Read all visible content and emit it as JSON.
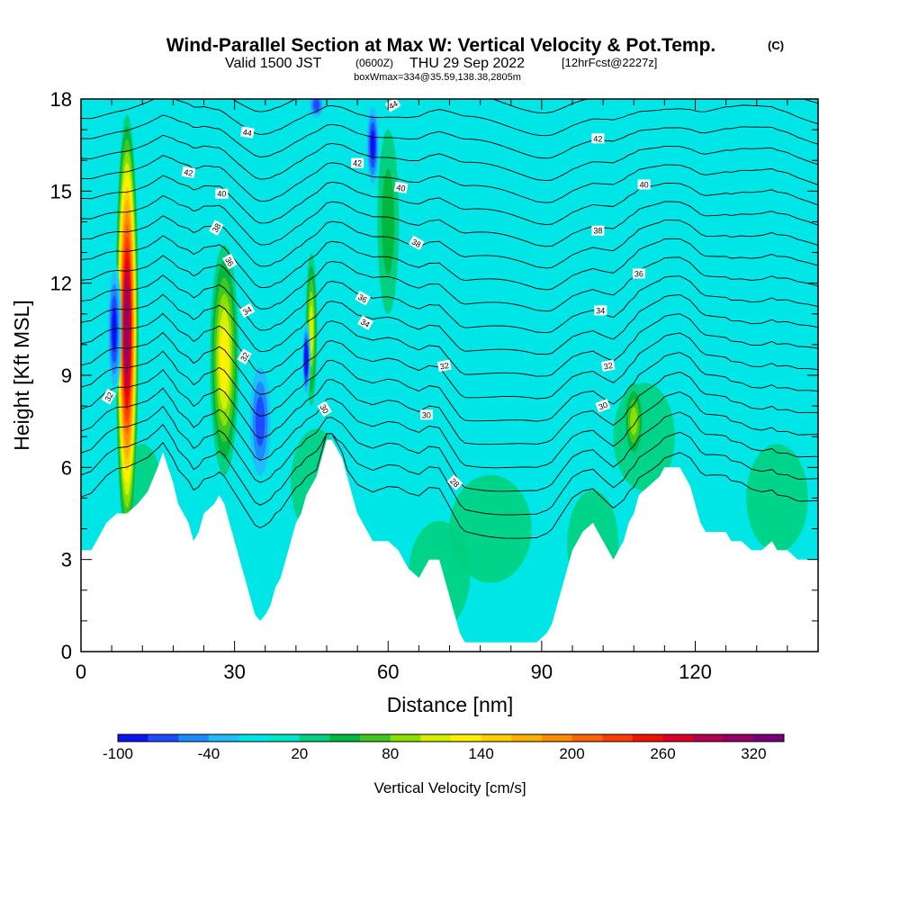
{
  "chart_data": {
    "type": "heatmap",
    "title": "Wind-Parallel Section at Max W: Vertical Velocity & Pot.Temp.",
    "copyright_mark": "(C)",
    "subtitle_main": "Valid 1500 JST",
    "subtitle_utc": "(0600Z)",
    "subtitle_date": "THU 29 Sep 2022",
    "subtitle_fcst": "[12hrFcst@2227z]",
    "box_info": "boxWmax=334@35.59,138.38,2805m",
    "xlabel": "Distance [nm]",
    "ylabel": "Height [Kft MSL]",
    "xlim": [
      0,
      144
    ],
    "ylim": [
      0,
      18
    ],
    "x_ticks": [
      0,
      30,
      60,
      90,
      120
    ],
    "y_ticks": [
      0,
      3,
      6,
      9,
      12,
      15,
      18
    ],
    "grid": false,
    "colorbar": {
      "title": "Vertical Velocity [cm/s]",
      "tick_labels": [
        -100,
        -40,
        20,
        80,
        140,
        200,
        260,
        320
      ],
      "levels": [
        -100,
        -80,
        -60,
        -40,
        -20,
        0,
        20,
        40,
        60,
        80,
        100,
        120,
        140,
        160,
        180,
        200,
        220,
        240,
        260,
        280,
        300,
        320,
        340
      ],
      "colors": [
        "#0a14f0",
        "#1e4bff",
        "#1a8cff",
        "#20bdfc",
        "#00e6e6",
        "#00e6c8",
        "#00d080",
        "#00b840",
        "#40c820",
        "#8ce000",
        "#d4f000",
        "#fff000",
        "#ffd000",
        "#ffb000",
        "#ff8c00",
        "#ff6400",
        "#ff3c00",
        "#f01400",
        "#dc0028",
        "#b40050",
        "#960064",
        "#780078"
      ]
    },
    "terrain_kft": [
      [
        0,
        3.3
      ],
      [
        2,
        3.3
      ],
      [
        3,
        3.6
      ],
      [
        4,
        3.9
      ],
      [
        5,
        4.2
      ],
      [
        7,
        4.5
      ],
      [
        9,
        4.5
      ],
      [
        11,
        4.8
      ],
      [
        13,
        5.2
      ],
      [
        15,
        6.0
      ],
      [
        16,
        6.5
      ],
      [
        17,
        6.0
      ],
      [
        18,
        5.5
      ],
      [
        19,
        4.8
      ],
      [
        20,
        4.5
      ],
      [
        21,
        4.2
      ],
      [
        22,
        3.6
      ],
      [
        23,
        3.9
      ],
      [
        24,
        4.5
      ],
      [
        26,
        4.8
      ],
      [
        27,
        5.1
      ],
      [
        28,
        4.8
      ],
      [
        29,
        4.2
      ],
      [
        30,
        3.6
      ],
      [
        31,
        3.0
      ],
      [
        32,
        2.4
      ],
      [
        33,
        1.8
      ],
      [
        34,
        1.2
      ],
      [
        35,
        1.0
      ],
      [
        36,
        1.2
      ],
      [
        37,
        1.5
      ],
      [
        38,
        2.1
      ],
      [
        39,
        2.4
      ],
      [
        40,
        3.0
      ],
      [
        41,
        3.6
      ],
      [
        42,
        4.2
      ],
      [
        43,
        4.5
      ],
      [
        44,
        5.1
      ],
      [
        46,
        5.7
      ],
      [
        47,
        6.3
      ],
      [
        48,
        6.9
      ],
      [
        49,
        6.9
      ],
      [
        50,
        6.6
      ],
      [
        51,
        6.3
      ],
      [
        52,
        5.7
      ],
      [
        53,
        5.1
      ],
      [
        54,
        4.5
      ],
      [
        55,
        4.2
      ],
      [
        56,
        3.9
      ],
      [
        57,
        3.6
      ],
      [
        60,
        3.6
      ],
      [
        62,
        3.3
      ],
      [
        63,
        3.0
      ],
      [
        64,
        2.7
      ],
      [
        66,
        2.4
      ],
      [
        67,
        2.7
      ],
      [
        68,
        3.0
      ],
      [
        70,
        3.0
      ],
      [
        71,
        2.4
      ],
      [
        72,
        1.8
      ],
      [
        73,
        1.2
      ],
      [
        74,
        0.6
      ],
      [
        75,
        0.3
      ],
      [
        79,
        0.3
      ],
      [
        81,
        0.3
      ],
      [
        83,
        0.3
      ],
      [
        85,
        0.3
      ],
      [
        87,
        0.3
      ],
      [
        89,
        0.3
      ],
      [
        91,
        0.6
      ],
      [
        92,
        0.9
      ],
      [
        93,
        1.5
      ],
      [
        94,
        2.1
      ],
      [
        95,
        2.7
      ],
      [
        96,
        3.3
      ],
      [
        97,
        3.6
      ],
      [
        98,
        3.9
      ],
      [
        100,
        4.2
      ],
      [
        101,
        3.9
      ],
      [
        102,
        3.6
      ],
      [
        103,
        3.3
      ],
      [
        104,
        3.0
      ],
      [
        105,
        3.3
      ],
      [
        106,
        3.6
      ],
      [
        107,
        4.2
      ],
      [
        108,
        4.5
      ],
      [
        109,
        5.1
      ],
      [
        111,
        5.4
      ],
      [
        113,
        5.7
      ],
      [
        114,
        6.0
      ],
      [
        117,
        6.0
      ],
      [
        118,
        5.7
      ],
      [
        119,
        5.4
      ],
      [
        120,
        4.8
      ],
      [
        121,
        4.2
      ],
      [
        122,
        3.9
      ],
      [
        124,
        3.9
      ],
      [
        126,
        3.9
      ],
      [
        127,
        3.6
      ],
      [
        129,
        3.6
      ],
      [
        131,
        3.3
      ],
      [
        133,
        3.3
      ],
      [
        135,
        3.6
      ],
      [
        136,
        3.3
      ],
      [
        138,
        3.3
      ],
      [
        140,
        3.0
      ],
      [
        142,
        3.0
      ],
      [
        144,
        3.0
      ]
    ],
    "velocity_features": [
      {
        "x": 9,
        "y": 10.5,
        "width_nm": 1.6,
        "height_kft": 14,
        "w_max": 300
      },
      {
        "x": 6.5,
        "y": 10.5,
        "width_nm": 1.0,
        "height_kft": 4.5,
        "w_max": -80
      },
      {
        "x": 28,
        "y": 9.5,
        "width_nm": 2.0,
        "height_kft": 7.5,
        "w_max": 130
      },
      {
        "x": 35,
        "y": 7.5,
        "width_nm": 1.8,
        "height_kft": 4.5,
        "w_max": -60
      },
      {
        "x": 45,
        "y": 10.5,
        "width_nm": 0.8,
        "height_kft": 5.0,
        "w_max": 110
      },
      {
        "x": 44,
        "y": 9.5,
        "width_nm": 0.6,
        "height_kft": 2.5,
        "w_max": -100
      },
      {
        "x": 57,
        "y": 16.5,
        "width_nm": 1.0,
        "height_kft": 3.0,
        "w_max": -80
      },
      {
        "x": 46,
        "y": 17.8,
        "width_nm": 1.2,
        "height_kft": 1.0,
        "w_max": -60
      },
      {
        "x": 108,
        "y": 7.5,
        "width_nm": 1.4,
        "height_kft": 2.5,
        "w_max": 90
      },
      {
        "x": 60,
        "y": 14,
        "width_nm": 1.5,
        "height_kft": 6.0,
        "w_max": 40
      }
    ],
    "contour_levels": [
      26,
      28,
      30,
      32,
      34,
      36,
      38,
      40,
      42,
      44
    ],
    "contour_labels": [
      {
        "text": "32",
        "x": 5.5,
        "y": 8.3,
        "angle": -60
      },
      {
        "text": "44",
        "x": 32.5,
        "y": 16.9,
        "angle": 10
      },
      {
        "text": "42",
        "x": 21,
        "y": 15.6,
        "angle": 10
      },
      {
        "text": "40",
        "x": 27.5,
        "y": 14.9,
        "angle": 0
      },
      {
        "text": "38",
        "x": 26.5,
        "y": 13.8,
        "angle": -60
      },
      {
        "text": "36",
        "x": 29,
        "y": 12.7,
        "angle": 60
      },
      {
        "text": "34",
        "x": 32.5,
        "y": 11.1,
        "angle": -30
      },
      {
        "text": "32",
        "x": 32,
        "y": 9.6,
        "angle": -60
      },
      {
        "text": "30",
        "x": 47.5,
        "y": 7.9,
        "angle": 60
      },
      {
        "text": "44",
        "x": 61,
        "y": 17.8,
        "angle": -30
      },
      {
        "text": "42",
        "x": 54,
        "y": 15.9,
        "angle": 0
      },
      {
        "text": "40",
        "x": 62.5,
        "y": 15.1,
        "angle": 10
      },
      {
        "text": "38",
        "x": 65.5,
        "y": 13.3,
        "angle": 30
      },
      {
        "text": "36",
        "x": 55,
        "y": 11.5,
        "angle": 30
      },
      {
        "text": "34",
        "x": 55.5,
        "y": 10.7,
        "angle": 30
      },
      {
        "text": "32",
        "x": 71,
        "y": 9.3,
        "angle": -10
      },
      {
        "text": "30",
        "x": 67.5,
        "y": 7.7,
        "angle": 0
      },
      {
        "text": "28",
        "x": 73,
        "y": 5.5,
        "angle": 45
      },
      {
        "text": "42",
        "x": 101,
        "y": 16.7,
        "angle": 0
      },
      {
        "text": "40",
        "x": 110,
        "y": 15.2,
        "angle": 0
      },
      {
        "text": "38",
        "x": 101,
        "y": 13.7,
        "angle": 0
      },
      {
        "text": "36",
        "x": 109,
        "y": 12.3,
        "angle": 0
      },
      {
        "text": "34",
        "x": 101.5,
        "y": 11.1,
        "angle": 0
      },
      {
        "text": "32",
        "x": 103,
        "y": 9.3,
        "angle": -10
      },
      {
        "text": "30",
        "x": 102,
        "y": 8.0,
        "angle": -20
      }
    ]
  }
}
